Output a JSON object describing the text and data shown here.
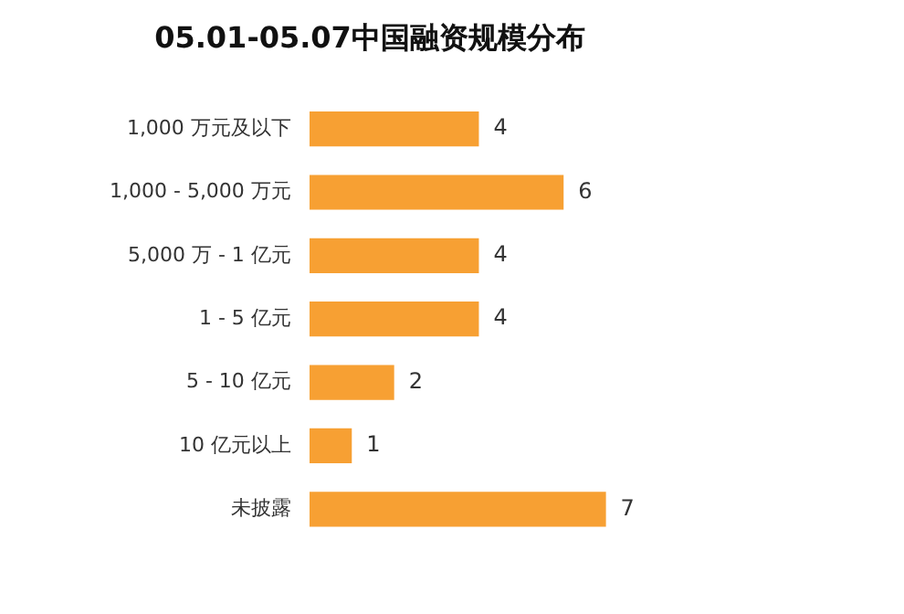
{
  "chart_data": {
    "type": "bar",
    "orientation": "horizontal",
    "title": "05.01-05.07中国融资规模分布",
    "categories": [
      "1,000 万元及以下",
      "1,000 - 5,000 万元",
      "5,000 万 - 1 亿元",
      "1 - 5 亿元",
      "5 - 10 亿元",
      "10 亿元以上",
      "未披露"
    ],
    "values": [
      4,
      6,
      4,
      4,
      2,
      1,
      7
    ],
    "color": "#f7a033",
    "data_labels": true,
    "grid": false,
    "legend": false
  }
}
